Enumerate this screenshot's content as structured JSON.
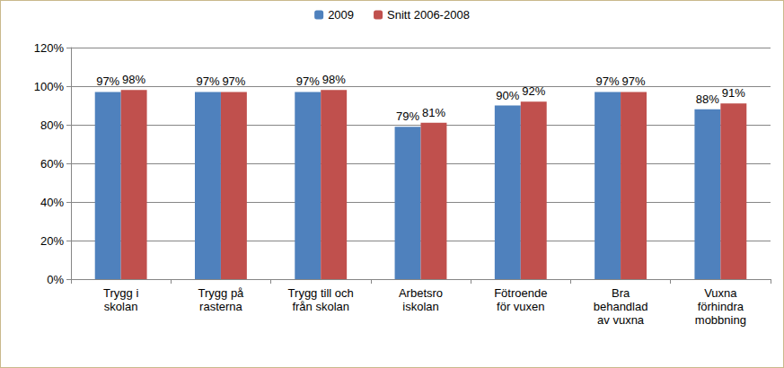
{
  "chart_data": {
    "type": "bar",
    "categories": [
      "Trygg i\nskolan",
      "Trygg på\nrasterna",
      "Trygg till och\nfrån skolan",
      "Arbetsro\niskolan",
      "Fötroende\nför vuxen",
      "Bra\nbehandlad\nav vuxna",
      "Vuxna\nförhindra\nmobbning"
    ],
    "series": [
      {
        "name": "2009",
        "color": "#4f81bd",
        "values": [
          97,
          97,
          97,
          79,
          90,
          97,
          88
        ],
        "value_labels": [
          "97%",
          "97%",
          "97%",
          "79%",
          "90%",
          "97%",
          "88%"
        ]
      },
      {
        "name": "Snitt 2006-2008",
        "color": "#c0504d",
        "values": [
          98,
          97,
          98,
          81,
          92,
          97,
          91
        ],
        "value_labels": [
          "98%",
          "97%",
          "98%",
          "81%",
          "92%",
          "97%",
          "91%"
        ]
      }
    ],
    "ylim": [
      0,
      120
    ],
    "yticks": [
      {
        "value": 0,
        "label": "0%"
      },
      {
        "value": 20,
        "label": "20%"
      },
      {
        "value": 40,
        "label": "40%"
      },
      {
        "value": 60,
        "label": "60%"
      },
      {
        "value": 80,
        "label": "80%"
      },
      {
        "value": 100,
        "label": "100%"
      },
      {
        "value": 120,
        "label": "120%"
      }
    ],
    "grid": true,
    "legend": "top",
    "data_labels": true
  }
}
